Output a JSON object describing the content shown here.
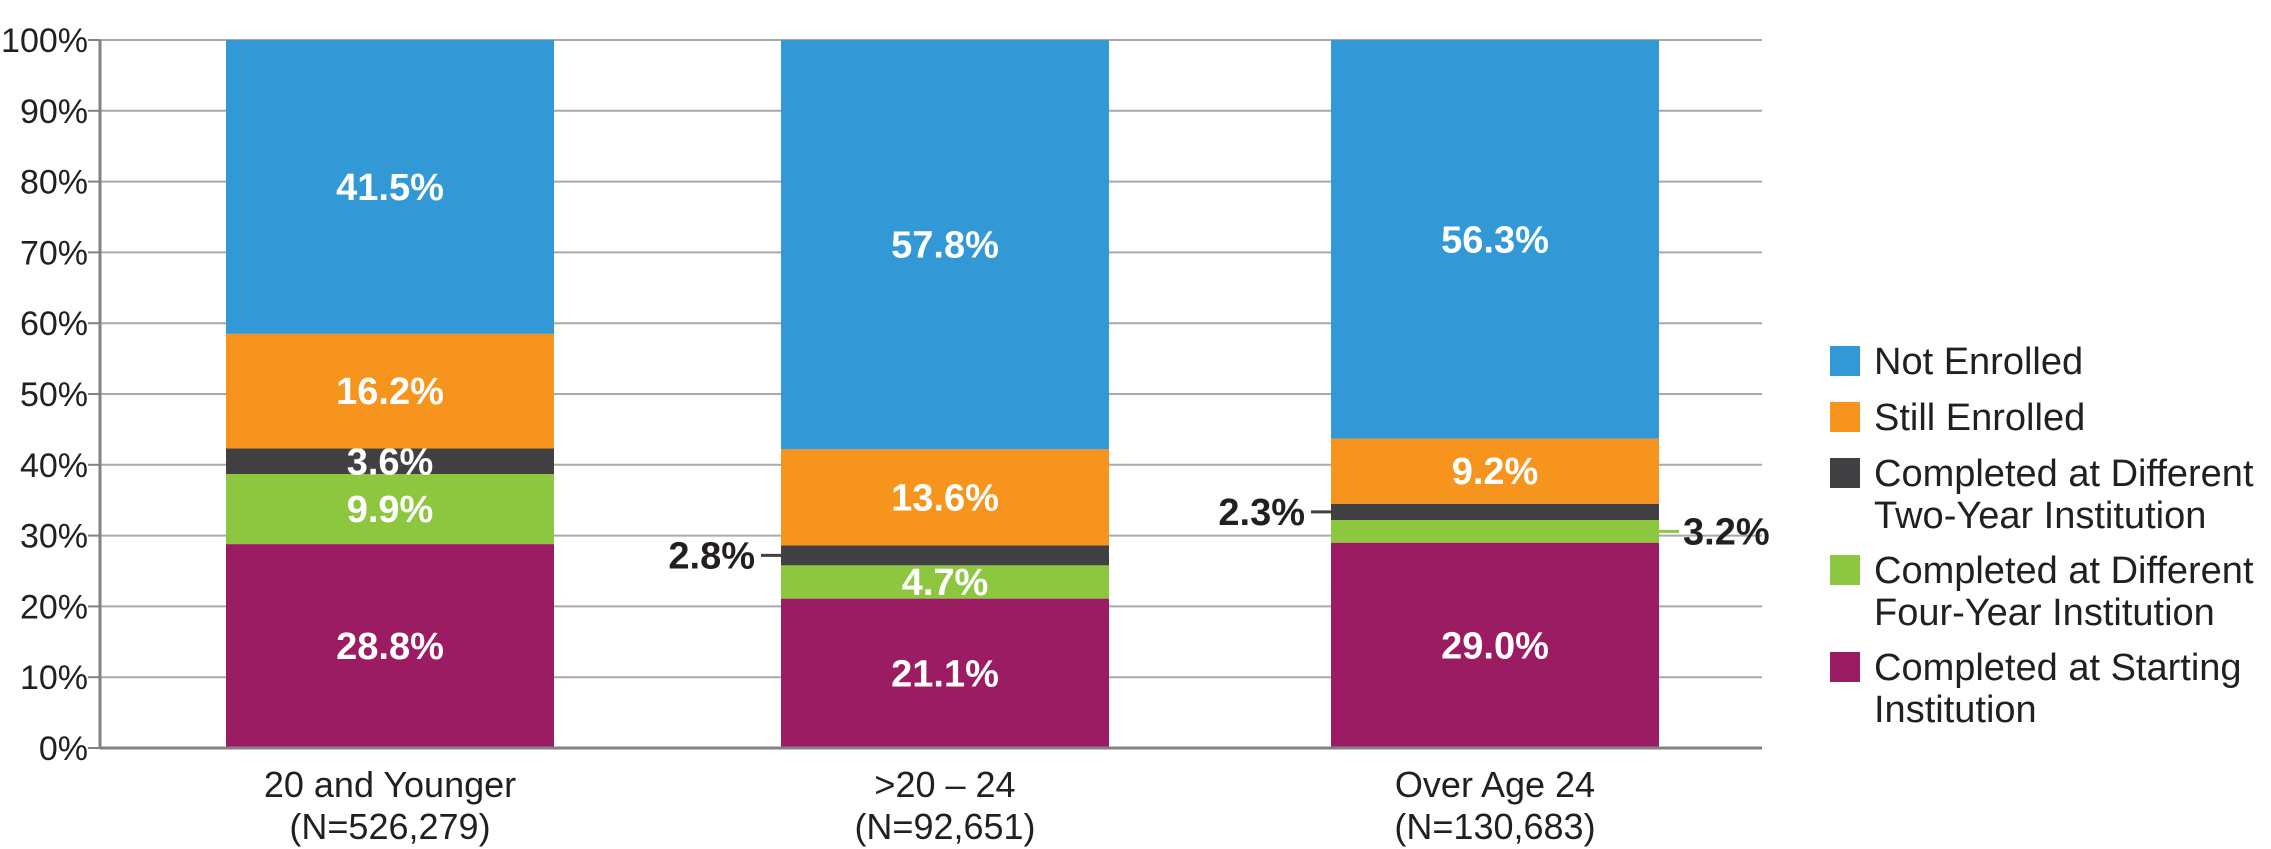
{
  "chart_data": {
    "type": "bar",
    "stacked": true,
    "ylim": [
      0,
      100
    ],
    "ytick_labels": [
      "0%",
      "10%",
      "20%",
      "30%",
      "40%",
      "50%",
      "60%",
      "70%",
      "80%",
      "90%",
      "100%"
    ],
    "categories": [
      {
        "name": "20 and Younger",
        "sub": "(N=526,279)"
      },
      {
        "name": ">20 – 24",
        "sub": "(N=92,651)"
      },
      {
        "name": "Over Age 24",
        "sub": "(N=130,683)"
      }
    ],
    "series": [
      {
        "name": "Completed at Starting Institution",
        "legend_lines": [
          "Completed at Starting",
          "Institution"
        ],
        "color": "#9c1c63",
        "values": [
          28.8,
          21.1,
          29.0
        ],
        "labels": [
          "28.8%",
          "21.1%",
          "29.0%"
        ]
      },
      {
        "name": "Completed at Different Four-Year Institution",
        "legend_lines": [
          "Completed at Different",
          "Four-Year Institution"
        ],
        "color": "#8dc63f",
        "values": [
          9.9,
          4.7,
          3.2
        ],
        "labels": [
          "9.9%",
          "4.7%",
          "3.2%"
        ]
      },
      {
        "name": "Completed at Different Two-Year Institution",
        "legend_lines": [
          "Completed at Different",
          "Two-Year Institution"
        ],
        "color": "#414042",
        "values": [
          3.6,
          2.8,
          2.3
        ],
        "labels": [
          "3.6%",
          "2.8%",
          "2.3%"
        ]
      },
      {
        "name": "Still Enrolled",
        "legend_lines": [
          "Still Enrolled"
        ],
        "color": "#f7941d",
        "values": [
          16.2,
          13.6,
          9.2
        ],
        "labels": [
          "16.2%",
          "13.6%",
          "9.2%"
        ]
      },
      {
        "name": "Not Enrolled",
        "legend_lines": [
          "Not Enrolled"
        ],
        "color": "#3399d6",
        "values": [
          41.5,
          57.8,
          56.3
        ],
        "labels": [
          "41.5%",
          "57.8%",
          "56.3%"
        ]
      }
    ],
    "outside_labels": [
      {
        "series": 2,
        "category": 1,
        "side": "left"
      },
      {
        "series": 2,
        "category": 2,
        "side": "left"
      },
      {
        "series": 1,
        "category": 2,
        "side": "right"
      }
    ],
    "legend_order": [
      4,
      3,
      2,
      1,
      0
    ],
    "legend_position": "right",
    "grid": true,
    "title": "",
    "xlabel": "",
    "ylabel": ""
  }
}
